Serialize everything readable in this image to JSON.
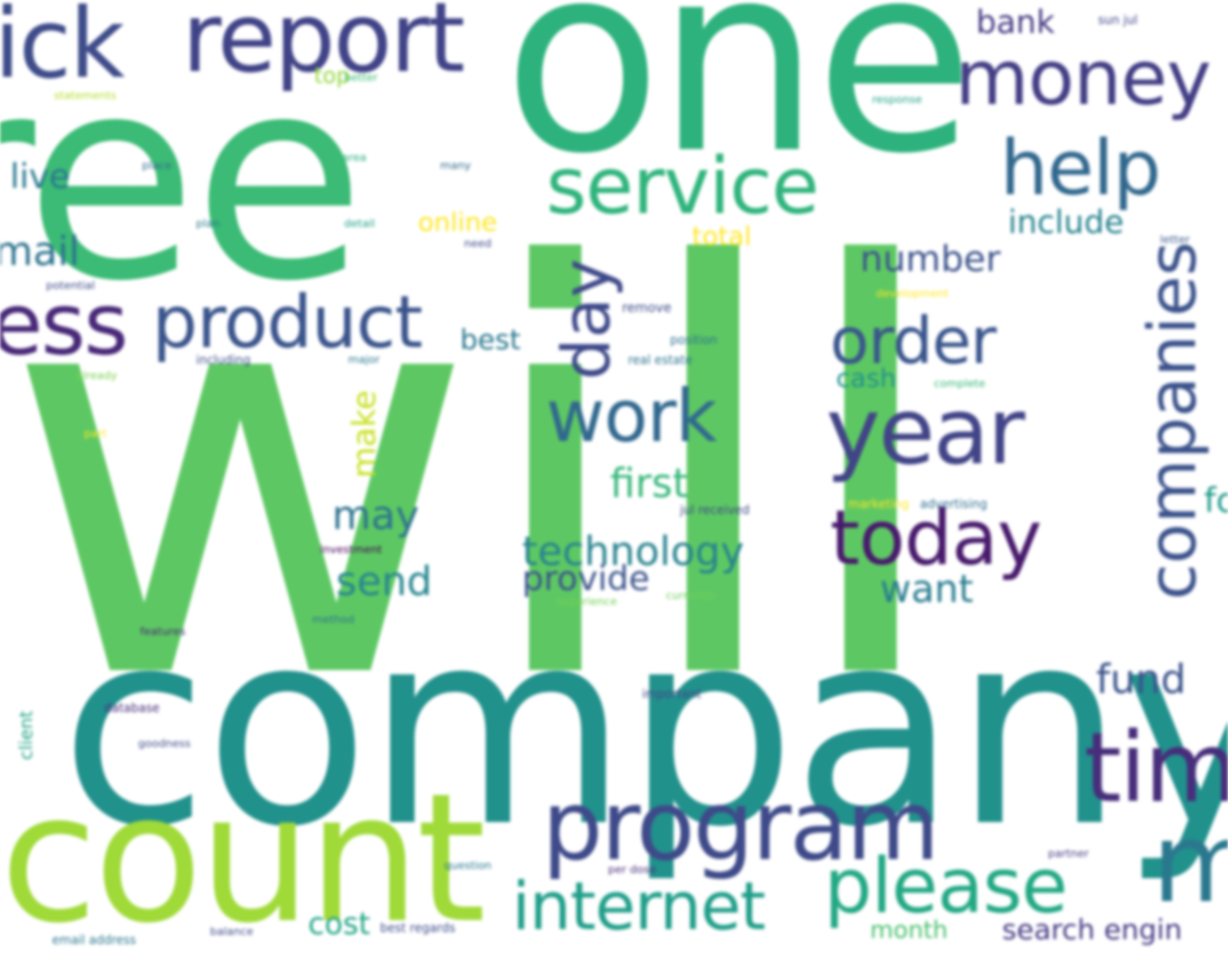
{
  "words": [
    {
      "text": "will",
      "color": "#5dc863",
      "size": "large"
    },
    {
      "text": "company",
      "color": "#21918c",
      "size": "large"
    },
    {
      "text": "one",
      "color": "#2db27d",
      "size": "large"
    },
    {
      "text": "ree",
      "color": "#3bbb75",
      "size": "large"
    },
    {
      "text": "count",
      "color": "#a0da39",
      "size": "large"
    },
    {
      "text": "program",
      "color": "#3e4a89",
      "size": "medium"
    },
    {
      "text": "report",
      "color": "#404387",
      "size": "medium"
    },
    {
      "text": "ick",
      "color": "#3e4c8a",
      "size": "medium"
    },
    {
      "text": "money",
      "color": "#433e85",
      "size": "medium"
    },
    {
      "text": "service",
      "color": "#2fb47c",
      "size": "medium"
    },
    {
      "text": "help",
      "color": "#31688e",
      "size": "medium"
    },
    {
      "text": "ess",
      "color": "#482878",
      "size": "medium"
    },
    {
      "text": "product",
      "color": "#3a548c",
      "size": "medium"
    },
    {
      "text": "order",
      "color": "#39558c",
      "size": "medium"
    },
    {
      "text": "year",
      "color": "#414487",
      "size": "medium"
    },
    {
      "text": "work",
      "color": "#31688e",
      "size": "medium"
    },
    {
      "text": "today",
      "color": "#481a6c",
      "size": "medium"
    },
    {
      "text": "tim",
      "color": "#472d7b",
      "size": "medium"
    },
    {
      "text": "please",
      "color": "#22a884",
      "size": "medium"
    },
    {
      "text": "internet",
      "color": "#1f9e89",
      "size": "medium"
    },
    {
      "text": "m",
      "color": "#2a788e",
      "size": "medium"
    },
    {
      "text": "companies",
      "color": "#3b528b",
      "size": "medium"
    },
    {
      "text": "day",
      "color": "#3e4989",
      "size": "medium"
    },
    {
      "text": "technology",
      "color": "#26828e",
      "size": "small"
    },
    {
      "text": "provide",
      "color": "#3b528b",
      "size": "small"
    },
    {
      "text": "first",
      "color": "#35b779",
      "size": "small"
    },
    {
      "text": "send",
      "color": "#25858e",
      "size": "small"
    },
    {
      "text": "may",
      "color": "#2c728e",
      "size": "small"
    },
    {
      "text": "want",
      "color": "#287c8e",
      "size": "small"
    },
    {
      "text": "fund",
      "color": "#3a538b",
      "size": "small"
    },
    {
      "text": "number",
      "color": "#3b528b",
      "size": "small"
    },
    {
      "text": "include",
      "color": "#26828e",
      "size": "small"
    },
    {
      "text": "bank",
      "color": "#443a83",
      "size": "small"
    },
    {
      "text": "mail",
      "color": "#2c728e",
      "size": "small"
    },
    {
      "text": "live",
      "color": "#2a788e",
      "size": "small"
    },
    {
      "text": "make",
      "color": "#c8e020",
      "size": "small"
    },
    {
      "text": "best",
      "color": "#2a788e",
      "size": "small"
    },
    {
      "text": "cash",
      "color": "#21918c",
      "size": "small"
    },
    {
      "text": "online",
      "color": "#fde725",
      "size": "small"
    },
    {
      "text": "total",
      "color": "#fde725",
      "size": "small"
    },
    {
      "text": "cost",
      "color": "#20a486",
      "size": "small"
    },
    {
      "text": "month",
      "color": "#4ac16d",
      "size": "small"
    },
    {
      "text": "search engin",
      "color": "#443983",
      "size": "small"
    },
    {
      "text": "top",
      "color": "#95d840",
      "size": "tiny"
    },
    {
      "text": "fo",
      "color": "#1f9a8a",
      "size": "small"
    },
    {
      "text": "client",
      "color": "#20a386",
      "size": "tiny"
    },
    {
      "text": "database",
      "color": "#472c7a",
      "size": "tiny"
    },
    {
      "text": "real estate",
      "color": "#2c728e",
      "size": "tiny"
    },
    {
      "text": "marketing",
      "color": "#fde725",
      "size": "tiny"
    },
    {
      "text": "advertising",
      "color": "#2e6e8e",
      "size": "tiny"
    },
    {
      "text": "jul received",
      "color": "#3f4788",
      "size": "tiny"
    },
    {
      "text": "remove",
      "color": "#3e4a89",
      "size": "tiny"
    },
    {
      "text": "important",
      "color": "#3f4788",
      "size": "tiny"
    },
    {
      "text": "email address",
      "color": "#2a778e",
      "size": "tiny"
    },
    {
      "text": "best regards",
      "color": "#3e4c8a",
      "size": "tiny"
    },
    {
      "text": "currently",
      "color": "#6ece58",
      "size": "tiny"
    },
    {
      "text": "experience",
      "color": "#75d054",
      "size": "tiny"
    },
    {
      "text": "position",
      "color": "#2d708e",
      "size": "tiny"
    },
    {
      "text": "complete",
      "color": "#35b779",
      "size": "tiny"
    },
    {
      "text": "including",
      "color": "#3b528b",
      "size": "tiny"
    },
    {
      "text": "potential",
      "color": "#3e4a89",
      "size": "tiny"
    },
    {
      "text": "statements",
      "color": "#b5de2b",
      "size": "tiny"
    },
    {
      "text": "investment",
      "color": "#440154",
      "size": "tiny"
    },
    {
      "text": "detail",
      "color": "#1f9f88",
      "size": "tiny"
    },
    {
      "text": "plan",
      "color": "#2a788e",
      "size": "tiny"
    },
    {
      "text": "place",
      "color": "#31688e",
      "size": "tiny"
    },
    {
      "text": "many",
      "color": "#31688e",
      "size": "tiny"
    },
    {
      "text": "area",
      "color": "#29af7f",
      "size": "tiny"
    },
    {
      "text": "response",
      "color": "#20a386",
      "size": "tiny"
    },
    {
      "text": "better",
      "color": "#3bbb75",
      "size": "tiny"
    },
    {
      "text": "letter",
      "color": "#38588c",
      "size": "tiny"
    },
    {
      "text": "development",
      "color": "#fde725",
      "size": "tiny"
    },
    {
      "text": "partner",
      "color": "#453781",
      "size": "tiny"
    },
    {
      "text": "question",
      "color": "#2a778e",
      "size": "tiny"
    },
    {
      "text": "per dose",
      "color": "#472c7a",
      "size": "tiny"
    },
    {
      "text": "balance",
      "color": "#3e4a89",
      "size": "tiny"
    },
    {
      "text": "goodness",
      "color": "#3e4c8a",
      "size": "tiny"
    },
    {
      "text": "method",
      "color": "#2d708e",
      "size": "tiny"
    },
    {
      "text": "features",
      "color": "#482878",
      "size": "tiny"
    },
    {
      "text": "already",
      "color": "#7ad151",
      "size": "tiny"
    },
    {
      "text": "major",
      "color": "#2a788e",
      "size": "tiny"
    },
    {
      "text": "part",
      "color": "#fde725",
      "size": "tiny"
    },
    {
      "text": "need",
      "color": "#3e4a89",
      "size": "tiny"
    },
    {
      "text": "sun jul",
      "color": "#3f4788",
      "size": "tiny"
    }
  ]
}
